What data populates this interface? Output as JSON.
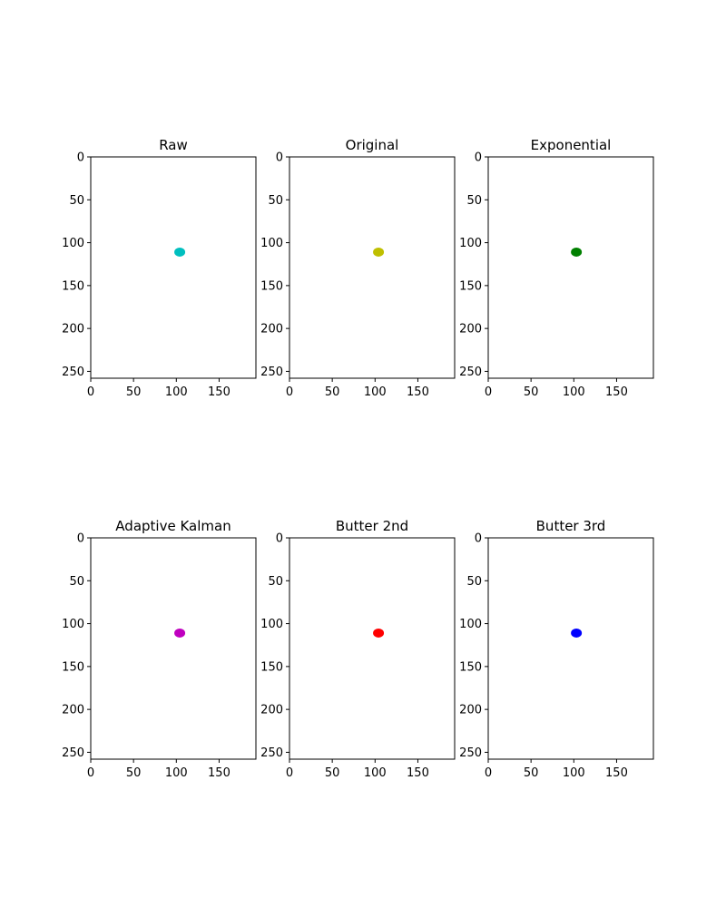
{
  "chart_data": [
    {
      "type": "scatter",
      "title": "Raw",
      "xlim": [
        0,
        193
      ],
      "ylim": [
        258,
        0
      ],
      "x_ticks": [
        0,
        50,
        100,
        150
      ],
      "y_ticks": [
        0,
        50,
        100,
        150,
        200,
        250
      ],
      "series": [
        {
          "x": [
            104
          ],
          "y": [
            111
          ],
          "color": "#00bfbf"
        }
      ]
    },
    {
      "type": "scatter",
      "title": "Original",
      "xlim": [
        0,
        193
      ],
      "ylim": [
        258,
        0
      ],
      "x_ticks": [
        0,
        50,
        100,
        150
      ],
      "y_ticks": [
        0,
        50,
        100,
        150,
        200,
        250
      ],
      "series": [
        {
          "x": [
            104
          ],
          "y": [
            111
          ],
          "color": "#bfbf00"
        }
      ]
    },
    {
      "type": "scatter",
      "title": "Exponential",
      "xlim": [
        0,
        193
      ],
      "ylim": [
        258,
        0
      ],
      "x_ticks": [
        0,
        50,
        100,
        150
      ],
      "y_ticks": [
        0,
        50,
        100,
        150,
        200,
        250
      ],
      "series": [
        {
          "x": [
            103
          ],
          "y": [
            111
          ],
          "color": "#008000"
        }
      ]
    },
    {
      "type": "scatter",
      "title": "Adaptive Kalman",
      "xlim": [
        0,
        193
      ],
      "ylim": [
        258,
        0
      ],
      "x_ticks": [
        0,
        50,
        100,
        150
      ],
      "y_ticks": [
        0,
        50,
        100,
        150,
        200,
        250
      ],
      "series": [
        {
          "x": [
            104
          ],
          "y": [
            111
          ],
          "color": "#bf00bf"
        }
      ]
    },
    {
      "type": "scatter",
      "title": "Butter 2nd",
      "xlim": [
        0,
        193
      ],
      "ylim": [
        258,
        0
      ],
      "x_ticks": [
        0,
        50,
        100,
        150
      ],
      "y_ticks": [
        0,
        50,
        100,
        150,
        200,
        250
      ],
      "series": [
        {
          "x": [
            104
          ],
          "y": [
            111
          ],
          "color": "#ff0000"
        }
      ]
    },
    {
      "type": "scatter",
      "title": "Butter 3rd",
      "xlim": [
        0,
        193
      ],
      "ylim": [
        258,
        0
      ],
      "x_ticks": [
        0,
        50,
        100,
        150
      ],
      "y_ticks": [
        0,
        50,
        100,
        150,
        200,
        250
      ],
      "series": [
        {
          "x": [
            103
          ],
          "y": [
            111
          ],
          "color": "#0000ff"
        }
      ]
    }
  ]
}
